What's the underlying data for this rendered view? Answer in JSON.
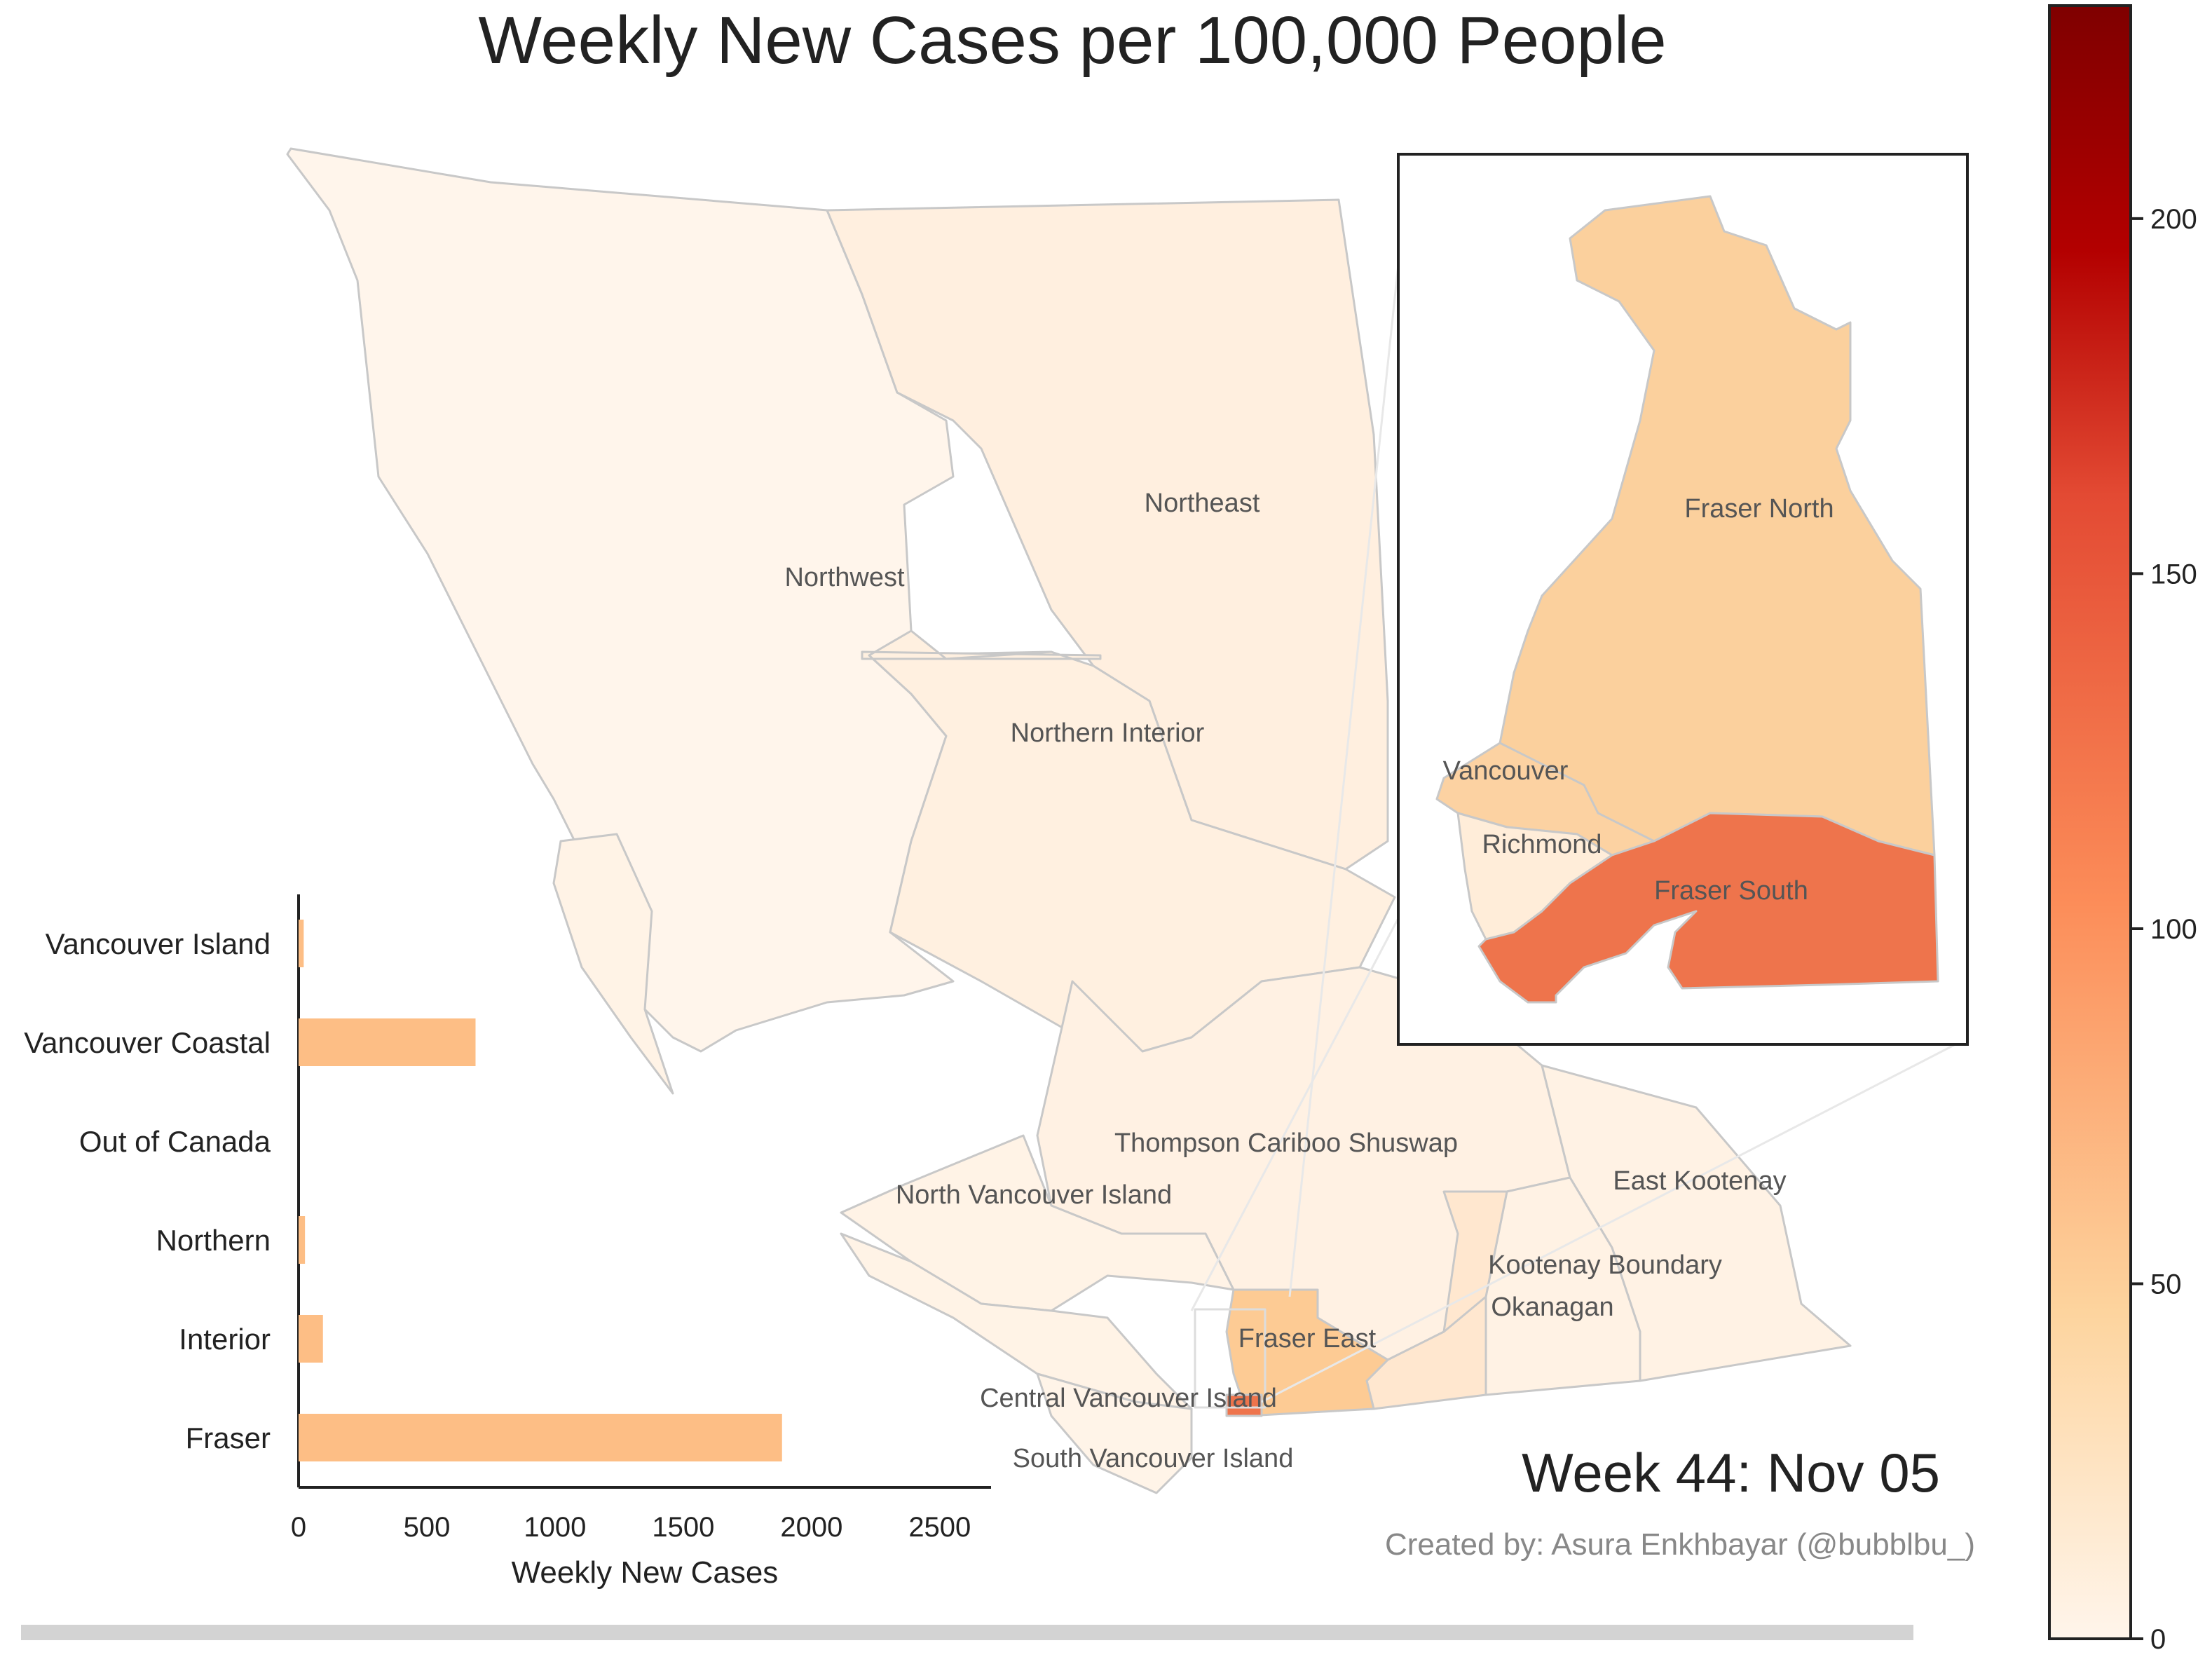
{
  "title": "Weekly New Cases per 100,000 People",
  "week_label": "Week 44: Nov 05",
  "credit": "Created by: Asura Enkhbayar (@bubblbu_)",
  "map": {
    "regions": [
      {
        "key": "northwest",
        "name": "Northwest",
        "value": 2,
        "color": "#fff5eb"
      },
      {
        "key": "northeast",
        "name": "Northeast",
        "value": 8,
        "color": "#ffefdf"
      },
      {
        "key": "northern-interior",
        "name": "Northern Interior",
        "value": 7,
        "color": "#fff0e0"
      },
      {
        "key": "thompson",
        "name": "Thompson Cariboo Shuswap",
        "value": 6,
        "color": "#fff1e3"
      },
      {
        "key": "east-kootenay",
        "name": "East Kootenay",
        "value": 5,
        "color": "#fff2e4"
      },
      {
        "key": "kootenay-boundary",
        "name": "Kootenay Boundary",
        "value": 5,
        "color": "#fff2e4"
      },
      {
        "key": "okanagan",
        "name": "Okanagan",
        "value": 18,
        "color": "#ffe7cf"
      },
      {
        "key": "north-vancouver-island",
        "name": "North Vancouver Island",
        "value": 4,
        "color": "#fff3e6"
      },
      {
        "key": "central-vancouver-island",
        "name": "Central Vancouver Island",
        "value": 4,
        "color": "#fff3e6"
      },
      {
        "key": "south-vancouver-island",
        "name": "South Vancouver Island",
        "value": 3,
        "color": "#fff4e8"
      },
      {
        "key": "fraser-east",
        "name": "Fraser East",
        "value": 60,
        "color": "#fdcb94"
      }
    ],
    "inset_regions": [
      {
        "key": "fraser-north",
        "name": "Fraser North",
        "value": 55,
        "color": "#fbd09d"
      },
      {
        "key": "vancouver",
        "name": "Vancouver",
        "value": 52,
        "color": "#fcd2a2"
      },
      {
        "key": "richmond",
        "name": "Richmond",
        "value": 12,
        "color": "#ffedd9"
      },
      {
        "key": "fraser-south",
        "name": "Fraser South",
        "value": 135,
        "color": "#ee744c"
      }
    ]
  },
  "colorbar": {
    "min": 0,
    "max": 230,
    "ticks": [
      0,
      50,
      100,
      150,
      200
    ],
    "colors": [
      "#fff5eb",
      "#fdd0a2",
      "#fd8d3c",
      "#e34a33",
      "#b30000",
      "#7f0000"
    ]
  },
  "chart_data": {
    "type": "bar",
    "orientation": "horizontal",
    "categories": [
      "Vancouver Island",
      "Vancouver Coastal",
      "Out of Canada",
      "Northern",
      "Interior",
      "Fraser"
    ],
    "values": [
      20,
      690,
      0,
      25,
      95,
      1885
    ],
    "xlabel": "Weekly New Cases",
    "xlim": [
      0,
      2700
    ],
    "xticks": [
      0,
      500,
      1000,
      1500,
      2000,
      2500
    ],
    "bar_color": "#fdbe85"
  }
}
